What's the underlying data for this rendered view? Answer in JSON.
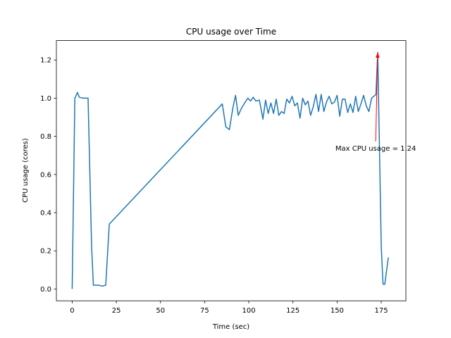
{
  "chart_data": {
    "type": "line",
    "title": "CPU usage over Time",
    "xlabel": "Time (sec)",
    "ylabel": "CPU usage (cores)",
    "x": [
      0,
      1.5,
      3,
      4,
      6,
      9,
      11,
      12,
      15,
      17,
      19,
      21,
      85,
      87,
      89,
      91,
      92.5,
      94,
      96,
      98,
      99.5,
      101,
      102.5,
      104,
      106,
      108,
      109.5,
      111,
      112.5,
      114,
      115.5,
      117,
      118.5,
      120,
      121.5,
      123,
      124.5,
      126,
      127.5,
      129,
      130.5,
      132,
      133.5,
      135,
      136.5,
      138,
      139.5,
      141,
      142.5,
      144,
      145.5,
      147,
      148.5,
      150,
      151.5,
      153,
      154.5,
      156,
      157.5,
      159,
      160.5,
      162,
      163.5,
      165,
      166.5,
      168,
      169.5,
      172,
      173,
      175,
      176,
      177,
      179
    ],
    "series": [
      {
        "name": "CPU usage",
        "color": "#1f77b4",
        "values": [
          0.0,
          1.0,
          1.03,
          1.005,
          1.0,
          1.0,
          0.22,
          0.02,
          0.02,
          0.015,
          0.02,
          0.34,
          0.97,
          0.85,
          0.835,
          0.95,
          1.015,
          0.91,
          0.95,
          0.98,
          1.0,
          0.985,
          1.005,
          0.985,
          0.99,
          0.89,
          0.99,
          0.92,
          0.975,
          0.92,
          0.995,
          0.91,
          0.93,
          0.92,
          0.995,
          0.975,
          1.01,
          0.96,
          0.975,
          0.895,
          1.0,
          0.965,
          0.985,
          0.91,
          0.955,
          1.02,
          0.93,
          1.02,
          0.93,
          0.98,
          1.01,
          0.97,
          0.98,
          1.015,
          0.905,
          0.995,
          0.995,
          0.925,
          0.97,
          0.925,
          1.01,
          0.93,
          0.97,
          1.015,
          0.96,
          0.93,
          1.0,
          1.02,
          1.24,
          0.22,
          0.025,
          0.025,
          0.165
        ]
      }
    ],
    "xlim": [
      -8.95,
      188.95
    ],
    "xticks": [
      0,
      25,
      50,
      75,
      100,
      125,
      150,
      175
    ],
    "ylim": [
      -0.062,
      1.302
    ],
    "yticks": [
      {
        "value": 0,
        "label": "0.0"
      },
      0.2,
      0.4,
      0.6,
      0.8,
      {
        "value": 1,
        "label": "1.0"
      },
      1.2
    ],
    "annotations": [
      {
        "text": "Max CPU usage = 1.24",
        "xy": [
          173,
          1.24
        ],
        "xytext": [
          149,
          0.74
        ],
        "color": "red"
      }
    ]
  }
}
